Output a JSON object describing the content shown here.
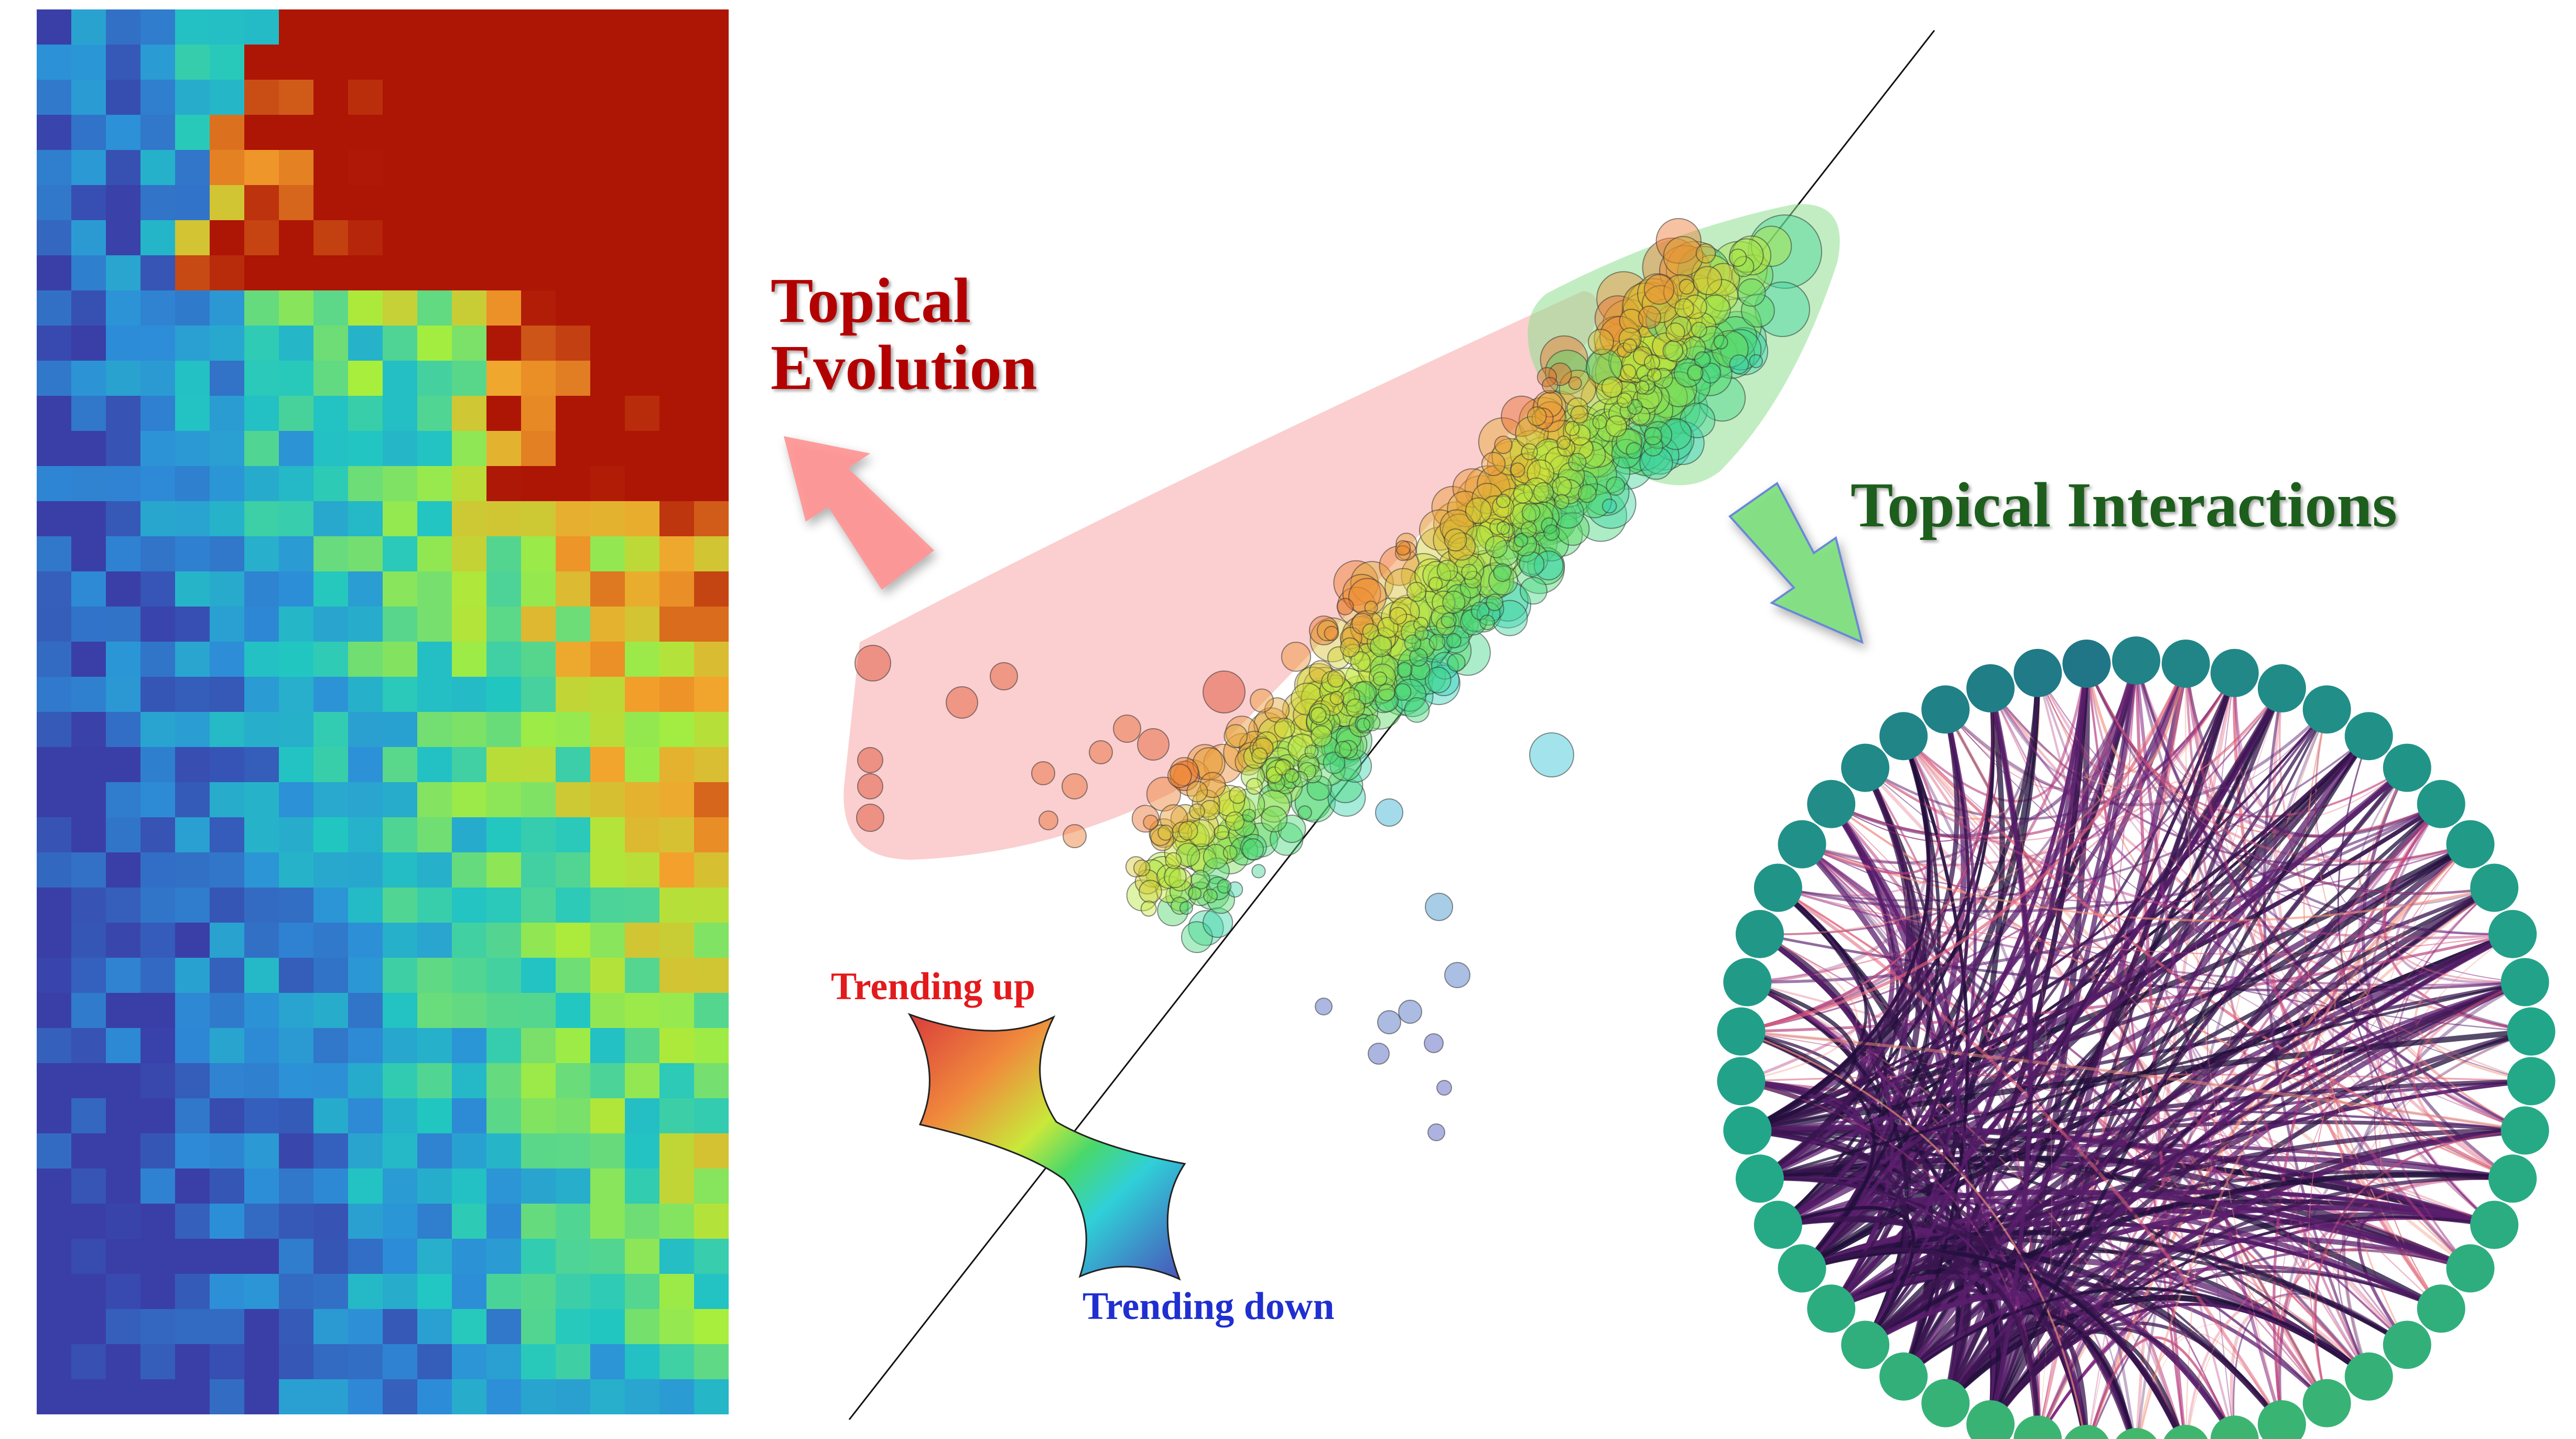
{
  "titles": {
    "evolution_line1": "Topical",
    "evolution_line2": "Evolution",
    "interactions": "Topical Interactions"
  },
  "legend": {
    "trending_up": "Trending up",
    "trending_down": "Trending down"
  },
  "colors": {
    "evolution_title": "#b30000",
    "interactions_title": "#1d5e1d",
    "trending_up": "#e31a1c",
    "trending_down": "#1f2fd0",
    "evolution_arrow": "#ff8f8f",
    "interactions_arrow": "#7ee07e",
    "evolution_region": "#f7a8a8",
    "interactions_region": "#8fdf8f",
    "heatmap_scale": [
      "#3a3fa8",
      "#2d8ed8",
      "#22c7c1",
      "#a8ee3c",
      "#f4a22c",
      "#ad1505"
    ],
    "circle_nodes_top": "#57c26a",
    "circle_nodes_bottom": "#1f6a8a",
    "edge_hub": "#1f0f3a",
    "edge_mid": "#8a2a85",
    "edge_light": "#f2907a"
  },
  "panels": {
    "heatmap": "colored-cell matrix (rows x time)",
    "scatter": "bubble scatter with diagonal reference line",
    "network": "circular chord network of topic nodes"
  }
}
